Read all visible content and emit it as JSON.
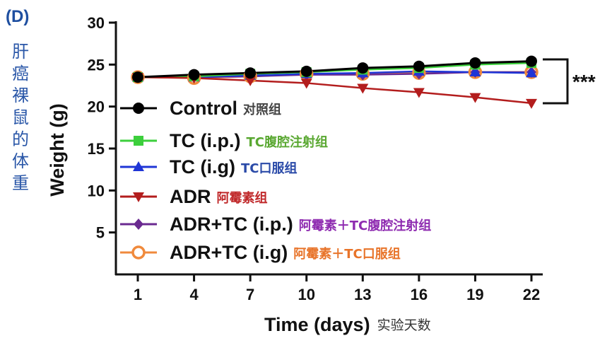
{
  "panel_label": "(D)",
  "side_title": [
    "肝",
    "癌",
    "裸",
    "鼠",
    "的",
    "体",
    "重"
  ],
  "chart_data": {
    "type": "line",
    "xlabel": "Time (days)",
    "xlabel_cn": "实验天数",
    "ylabel": "Weight (g)",
    "x": [
      1,
      4,
      7,
      10,
      13,
      16,
      19,
      22
    ],
    "y_ticks": [
      5,
      10,
      15,
      20,
      25,
      30
    ],
    "xlim": [
      1,
      22
    ],
    "ylim": [
      0,
      30
    ],
    "significance": "***",
    "series": [
      {
        "name": "Control",
        "name_cn": "对照组",
        "color": "#000000",
        "label_color": "#444444",
        "marker": "circle",
        "values": [
          23.5,
          23.8,
          24.0,
          24.2,
          24.6,
          24.8,
          25.2,
          25.4
        ]
      },
      {
        "name": "TC (i.p.)",
        "name_cn": "TC腹腔注射组",
        "color": "#3ccf3c",
        "label_color": "#5aa832",
        "marker": "square",
        "values": [
          23.5,
          23.6,
          23.9,
          24.1,
          24.4,
          24.6,
          25.0,
          25.2
        ]
      },
      {
        "name": "TC (i.g)",
        "name_cn": "TC口服组",
        "color": "#1f35d6",
        "label_color": "#2a4aa8",
        "marker": "triangle-up",
        "values": [
          23.5,
          23.5,
          23.7,
          23.9,
          24.0,
          24.2,
          24.1,
          24.0
        ]
      },
      {
        "name": "ADR",
        "name_cn": "阿霉素组",
        "color": "#b31d1d",
        "label_color": "#c0282a",
        "marker": "triangle-down",
        "values": [
          23.5,
          23.4,
          23.1,
          22.8,
          22.2,
          21.7,
          21.1,
          20.4
        ]
      },
      {
        "name": "ADR+TC (i.p.)",
        "name_cn": "阿霉素＋TC腹腔注射组",
        "color": "#6a2a90",
        "label_color": "#8e2bb0",
        "marker": "diamond",
        "values": [
          23.5,
          23.5,
          23.6,
          23.8,
          23.8,
          23.9,
          24.1,
          24.1
        ]
      },
      {
        "name": "ADR+TC (i.g)",
        "name_cn": "阿霉素＋TC口服组",
        "color": "#f08a3c",
        "label_color": "#e8742a",
        "marker": "circle-open",
        "values": [
          23.5,
          23.4,
          23.6,
          23.9,
          23.9,
          24.0,
          24.1,
          24.1
        ]
      }
    ]
  }
}
